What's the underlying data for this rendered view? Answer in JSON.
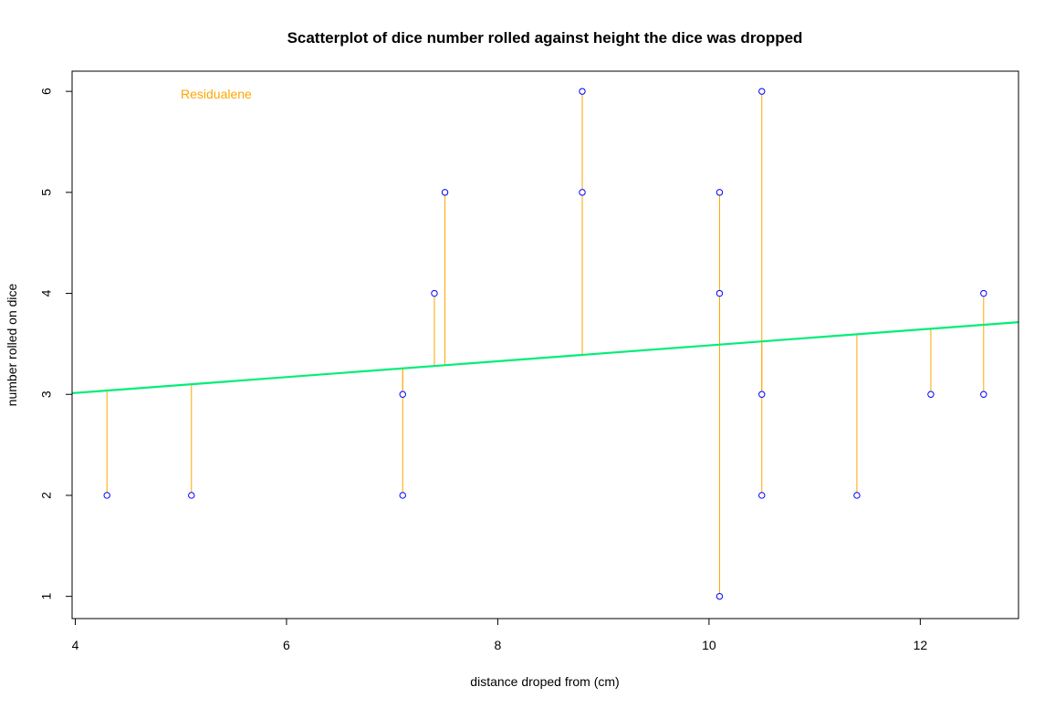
{
  "chart_data": {
    "type": "scatter",
    "title": "Scatterplot of dice number rolled against height the dice was dropped",
    "xlabel": "distance droped from (cm)",
    "ylabel": "number rolled on dice",
    "xlim": [
      3.97,
      12.93
    ],
    "ylim": [
      0.78,
      6.2
    ],
    "x_ticks": [
      4,
      6,
      8,
      10,
      12
    ],
    "y_ticks": [
      1,
      2,
      3,
      4,
      5,
      6
    ],
    "grid": false,
    "legend_text": "Residualene",
    "points": [
      {
        "x": 4.3,
        "y": 2
      },
      {
        "x": 5.1,
        "y": 2
      },
      {
        "x": 7.1,
        "y": 3
      },
      {
        "x": 7.1,
        "y": 2
      },
      {
        "x": 7.4,
        "y": 4
      },
      {
        "x": 7.5,
        "y": 5
      },
      {
        "x": 8.8,
        "y": 6
      },
      {
        "x": 8.8,
        "y": 5
      },
      {
        "x": 10.1,
        "y": 5
      },
      {
        "x": 10.1,
        "y": 4
      },
      {
        "x": 10.1,
        "y": 1
      },
      {
        "x": 10.5,
        "y": 6
      },
      {
        "x": 10.5,
        "y": 3
      },
      {
        "x": 10.5,
        "y": 2
      },
      {
        "x": 11.4,
        "y": 2
      },
      {
        "x": 12.1,
        "y": 3
      },
      {
        "x": 12.6,
        "y": 4
      },
      {
        "x": 12.6,
        "y": 3
      }
    ],
    "regression_line": {
      "intercept": 2.7,
      "slope": 0.0785
    },
    "colors": {
      "point": "#0000ff",
      "residual": "#ffa500",
      "regression": "#00ee76",
      "legend": "#ffa500"
    }
  }
}
